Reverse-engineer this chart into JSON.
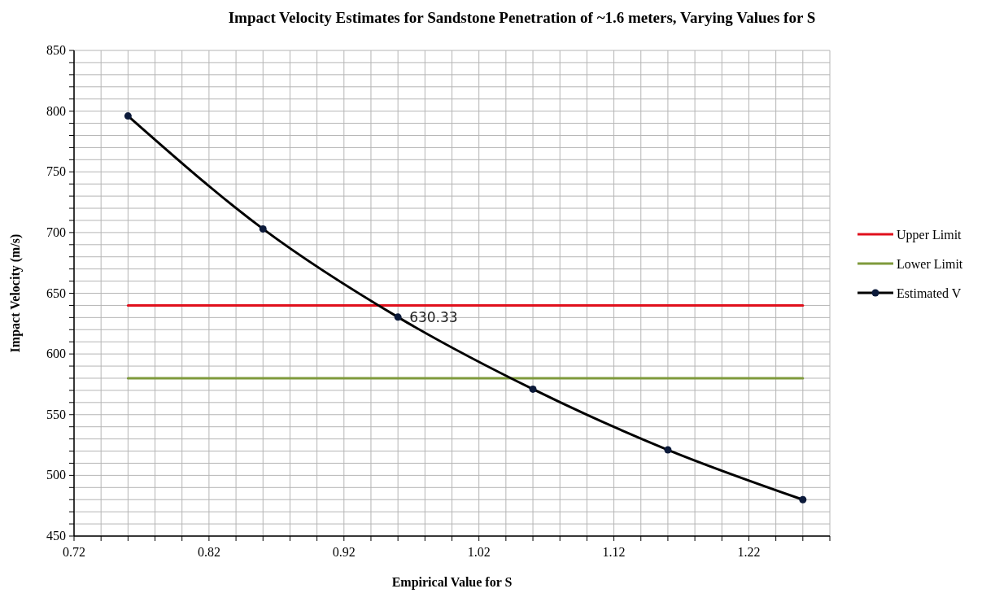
{
  "chart_data": {
    "type": "line",
    "title": "Impact Velocity Estimates for Sandstone Penetration of ~1.6 meters, Varying Values for S",
    "xlabel": "Empirical Value for S",
    "ylabel": "Impact Velocity (m/s)",
    "x": [
      0.76,
      0.86,
      0.96,
      1.06,
      1.16,
      1.26
    ],
    "series": [
      {
        "name": "Upper Limit",
        "color": "#e0101c",
        "values": [
          640,
          640,
          640,
          640,
          640,
          640
        ],
        "marker": "none"
      },
      {
        "name": "Lower Limit",
        "color": "#7f9a3c",
        "values": [
          580,
          580,
          580,
          580,
          580,
          580
        ],
        "marker": "none"
      },
      {
        "name": "Estimated V",
        "color": "#000000",
        "values": [
          796,
          703,
          630.33,
          571,
          521,
          480
        ],
        "marker": "circle",
        "value_labels": [
          null,
          null,
          "630.33",
          null,
          null,
          null
        ]
      }
    ],
    "xlim": [
      0.72,
      1.28
    ],
    "xticks": [
      0.72,
      {
        "value": 0.74,
        "label": null
      },
      {
        "value": 0.76,
        "label": null
      },
      {
        "value": 0.78,
        "label": null
      },
      {
        "value": 0.8,
        "label": null
      },
      0.82,
      {
        "value": 0.84,
        "label": null
      },
      {
        "value": 0.86,
        "label": null
      },
      {
        "value": 0.88,
        "label": null
      },
      {
        "value": 0.9,
        "label": null
      },
      0.92,
      {
        "value": 0.94,
        "label": null
      },
      {
        "value": 0.96,
        "label": null
      },
      {
        "value": 0.98,
        "label": null
      },
      {
        "value": 1.0,
        "label": null
      },
      1.02,
      {
        "value": 1.04,
        "label": null
      },
      {
        "value": 1.06,
        "label": null
      },
      {
        "value": 1.08,
        "label": null
      },
      {
        "value": 1.1,
        "label": null
      },
      1.12,
      {
        "value": 1.14,
        "label": null
      },
      {
        "value": 1.16,
        "label": null
      },
      {
        "value": 1.18,
        "label": null
      },
      {
        "value": 1.2,
        "label": null
      },
      1.22,
      {
        "value": 1.24,
        "label": null
      },
      {
        "value": 1.26,
        "label": null
      },
      {
        "value": 1.28,
        "label": null
      }
    ],
    "ylim": [
      450,
      850
    ],
    "yticks": [
      450,
      {
        "value": 460,
        "label": null
      },
      {
        "value": 470,
        "label": null
      },
      {
        "value": 480,
        "label": null
      },
      {
        "value": 490,
        "label": null
      },
      500,
      {
        "value": 510,
        "label": null
      },
      {
        "value": 520,
        "label": null
      },
      {
        "value": 530,
        "label": null
      },
      {
        "value": 540,
        "label": null
      },
      550,
      {
        "value": 560,
        "label": null
      },
      {
        "value": 570,
        "label": null
      },
      {
        "value": 580,
        "label": null
      },
      {
        "value": 590,
        "label": null
      },
      600,
      {
        "value": 610,
        "label": null
      },
      {
        "value": 620,
        "label": null
      },
      {
        "value": 630,
        "label": null
      },
      {
        "value": 640,
        "label": null
      },
      650,
      {
        "value": 660,
        "label": null
      },
      {
        "value": 670,
        "label": null
      },
      {
        "value": 680,
        "label": null
      },
      {
        "value": 690,
        "label": null
      },
      700,
      {
        "value": 710,
        "label": null
      },
      {
        "value": 720,
        "label": null
      },
      {
        "value": 730,
        "label": null
      },
      {
        "value": 740,
        "label": null
      },
      750,
      {
        "value": 760,
        "label": null
      },
      {
        "value": 770,
        "label": null
      },
      {
        "value": 780,
        "label": null
      },
      {
        "value": 790,
        "label": null
      },
      800,
      {
        "value": 810,
        "label": null
      },
      {
        "value": 820,
        "label": null
      },
      {
        "value": 830,
        "label": null
      },
      {
        "value": 840,
        "label": null
      },
      850
    ],
    "grid": true,
    "legend": "right",
    "line_style": "solid"
  }
}
